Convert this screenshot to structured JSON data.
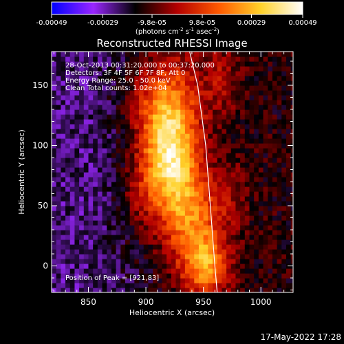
{
  "chart_data": {
    "type": "heatmap",
    "title": "Reconstructed RHESSI Image",
    "xlabel": "Heliocentric X (arcsec)",
    "ylabel": "Heliocentric Y (arcsec)",
    "xlim": [
      818,
      1028
    ],
    "ylim": [
      -22,
      178
    ],
    "x_ticks": [
      850,
      900,
      950,
      1000
    ],
    "x_tick_labels": [
      "850",
      "900",
      "950",
      "1000"
    ],
    "y_ticks": [
      0,
      50,
      100,
      150
    ],
    "y_tick_labels": [
      "0",
      "50",
      "100",
      "150"
    ],
    "colorbar": {
      "range": [
        -0.00049,
        0.00049
      ],
      "ticks": [
        -0.00049,
        -0.00029,
        -9.8e-05,
        9.8e-05,
        0.00029,
        0.00049
      ],
      "tick_labels": [
        "-0.00049",
        "-0.00029",
        "-9.8e-05",
        "9.8e-05",
        "0.00029",
        "0.00049"
      ],
      "units": "(photons cm",
      "units_exp1": "-2",
      "units_mid": " s",
      "units_exp2": "-1",
      "units_mid2": " asec",
      "units_exp3": "-2",
      "units_end": ")",
      "colors": [
        "#0000ff",
        "#9a26ff",
        "#000000",
        "#b40000",
        "#ff5a00",
        "#ffd22a",
        "#ffffff"
      ]
    },
    "info_lines": [
      "28-Oct-2013 00:31:20.000 to 00:37:20.000",
      "Detectors: 3F 4F 5F 6F 7F 8F, Att 0",
      "Energy Range: 25.0 - 50.0 keV",
      "Clean     Total counts: 1.02e+04"
    ],
    "peak_label": "Position of Peak = [921,83]",
    "peak": [
      921,
      83
    ],
    "limb_curve": [
      [
        938,
        178
      ],
      [
        945,
        150
      ],
      [
        952,
        100
      ],
      [
        956,
        50
      ],
      [
        960,
        0
      ],
      [
        962,
        -22
      ]
    ],
    "emission_sources": [
      {
        "x": 921,
        "y": 88,
        "sx": 16,
        "sy": 30,
        "amp": 0.00048
      },
      {
        "x": 916,
        "y": 135,
        "sx": 20,
        "sy": 28,
        "amp": 0.0003
      },
      {
        "x": 940,
        "y": 40,
        "sx": 18,
        "sy": 26,
        "amp": 0.0003
      },
      {
        "x": 952,
        "y": 0,
        "sx": 14,
        "sy": 18,
        "amp": 0.00035
      },
      {
        "x": 965,
        "y": 155,
        "sx": 12,
        "sy": 22,
        "amp": 0.00012
      },
      {
        "x": 895,
        "y": 60,
        "sx": 12,
        "sy": 25,
        "amp": 0.00012
      },
      {
        "x": 975,
        "y": 60,
        "sx": 10,
        "sy": 20,
        "amp": 8e-05
      }
    ],
    "negative_floor": -0.00024,
    "grid": false
  },
  "footer": {
    "timestamp": "17-May-2022 17:28"
  }
}
